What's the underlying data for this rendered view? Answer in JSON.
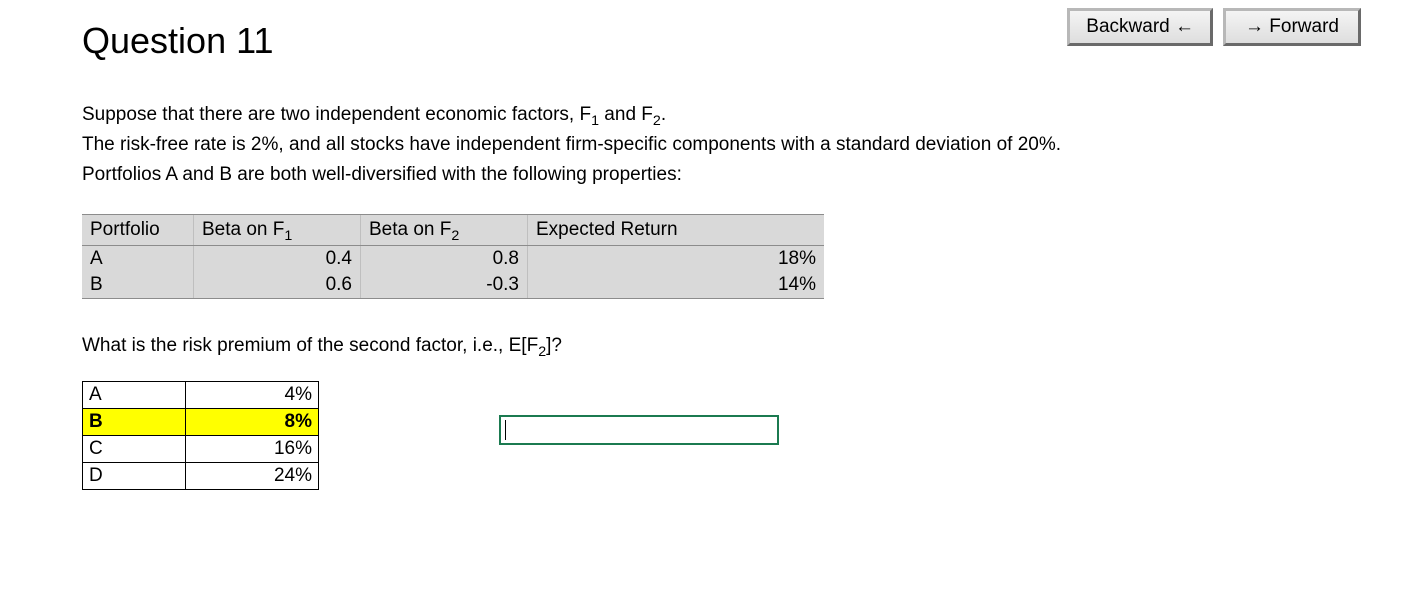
{
  "nav": {
    "backward_label": "Backward ←",
    "forward_label": "→ Forward"
  },
  "title": "Question 11",
  "prompt": {
    "line1_pre": "Suppose that there are two independent economic factors, F",
    "line1_sub1": "1",
    "line1_mid": " and F",
    "line1_sub2": "2",
    "line1_post": ".",
    "line2": "The risk-free rate is 2%, and all stocks have independent firm-specific components with a standard deviation of 20%.",
    "line3": "Portfolios A and B are both well-diversified with the following properties:"
  },
  "table": {
    "headers": {
      "c0": "Portfolio",
      "c1_pre": "Beta on F",
      "c1_sub": "1",
      "c2_pre": "Beta on F",
      "c2_sub": "2",
      "c3": "Expected Return"
    },
    "col_widths": {
      "c0": 95,
      "c1": 150,
      "c2": 150,
      "c3": 280
    },
    "rows": [
      {
        "portfolio": "A",
        "beta1": "0.4",
        "beta2": "0.8",
        "ret": "18%"
      },
      {
        "portfolio": "B",
        "beta1": "0.6",
        "beta2": "-0.3",
        "ret": "14%"
      }
    ]
  },
  "follow_q": {
    "pre": "What is the risk premium of the second factor, i.e., E[F",
    "sub": "2",
    "post": "]?"
  },
  "answers": {
    "options": [
      {
        "label": "A",
        "value": "4%",
        "highlight": false
      },
      {
        "label": "B",
        "value": "8%",
        "highlight": true
      },
      {
        "label": "C",
        "value": "16%",
        "highlight": false
      },
      {
        "label": "D",
        "value": "24%",
        "highlight": false
      }
    ]
  },
  "input": {
    "value": ""
  },
  "style": {
    "highlight_color": "#ffff00",
    "table_bg": "#d9d9d9",
    "table_border_dark": "#8c8c8c",
    "input_border": "#1b7a50"
  }
}
